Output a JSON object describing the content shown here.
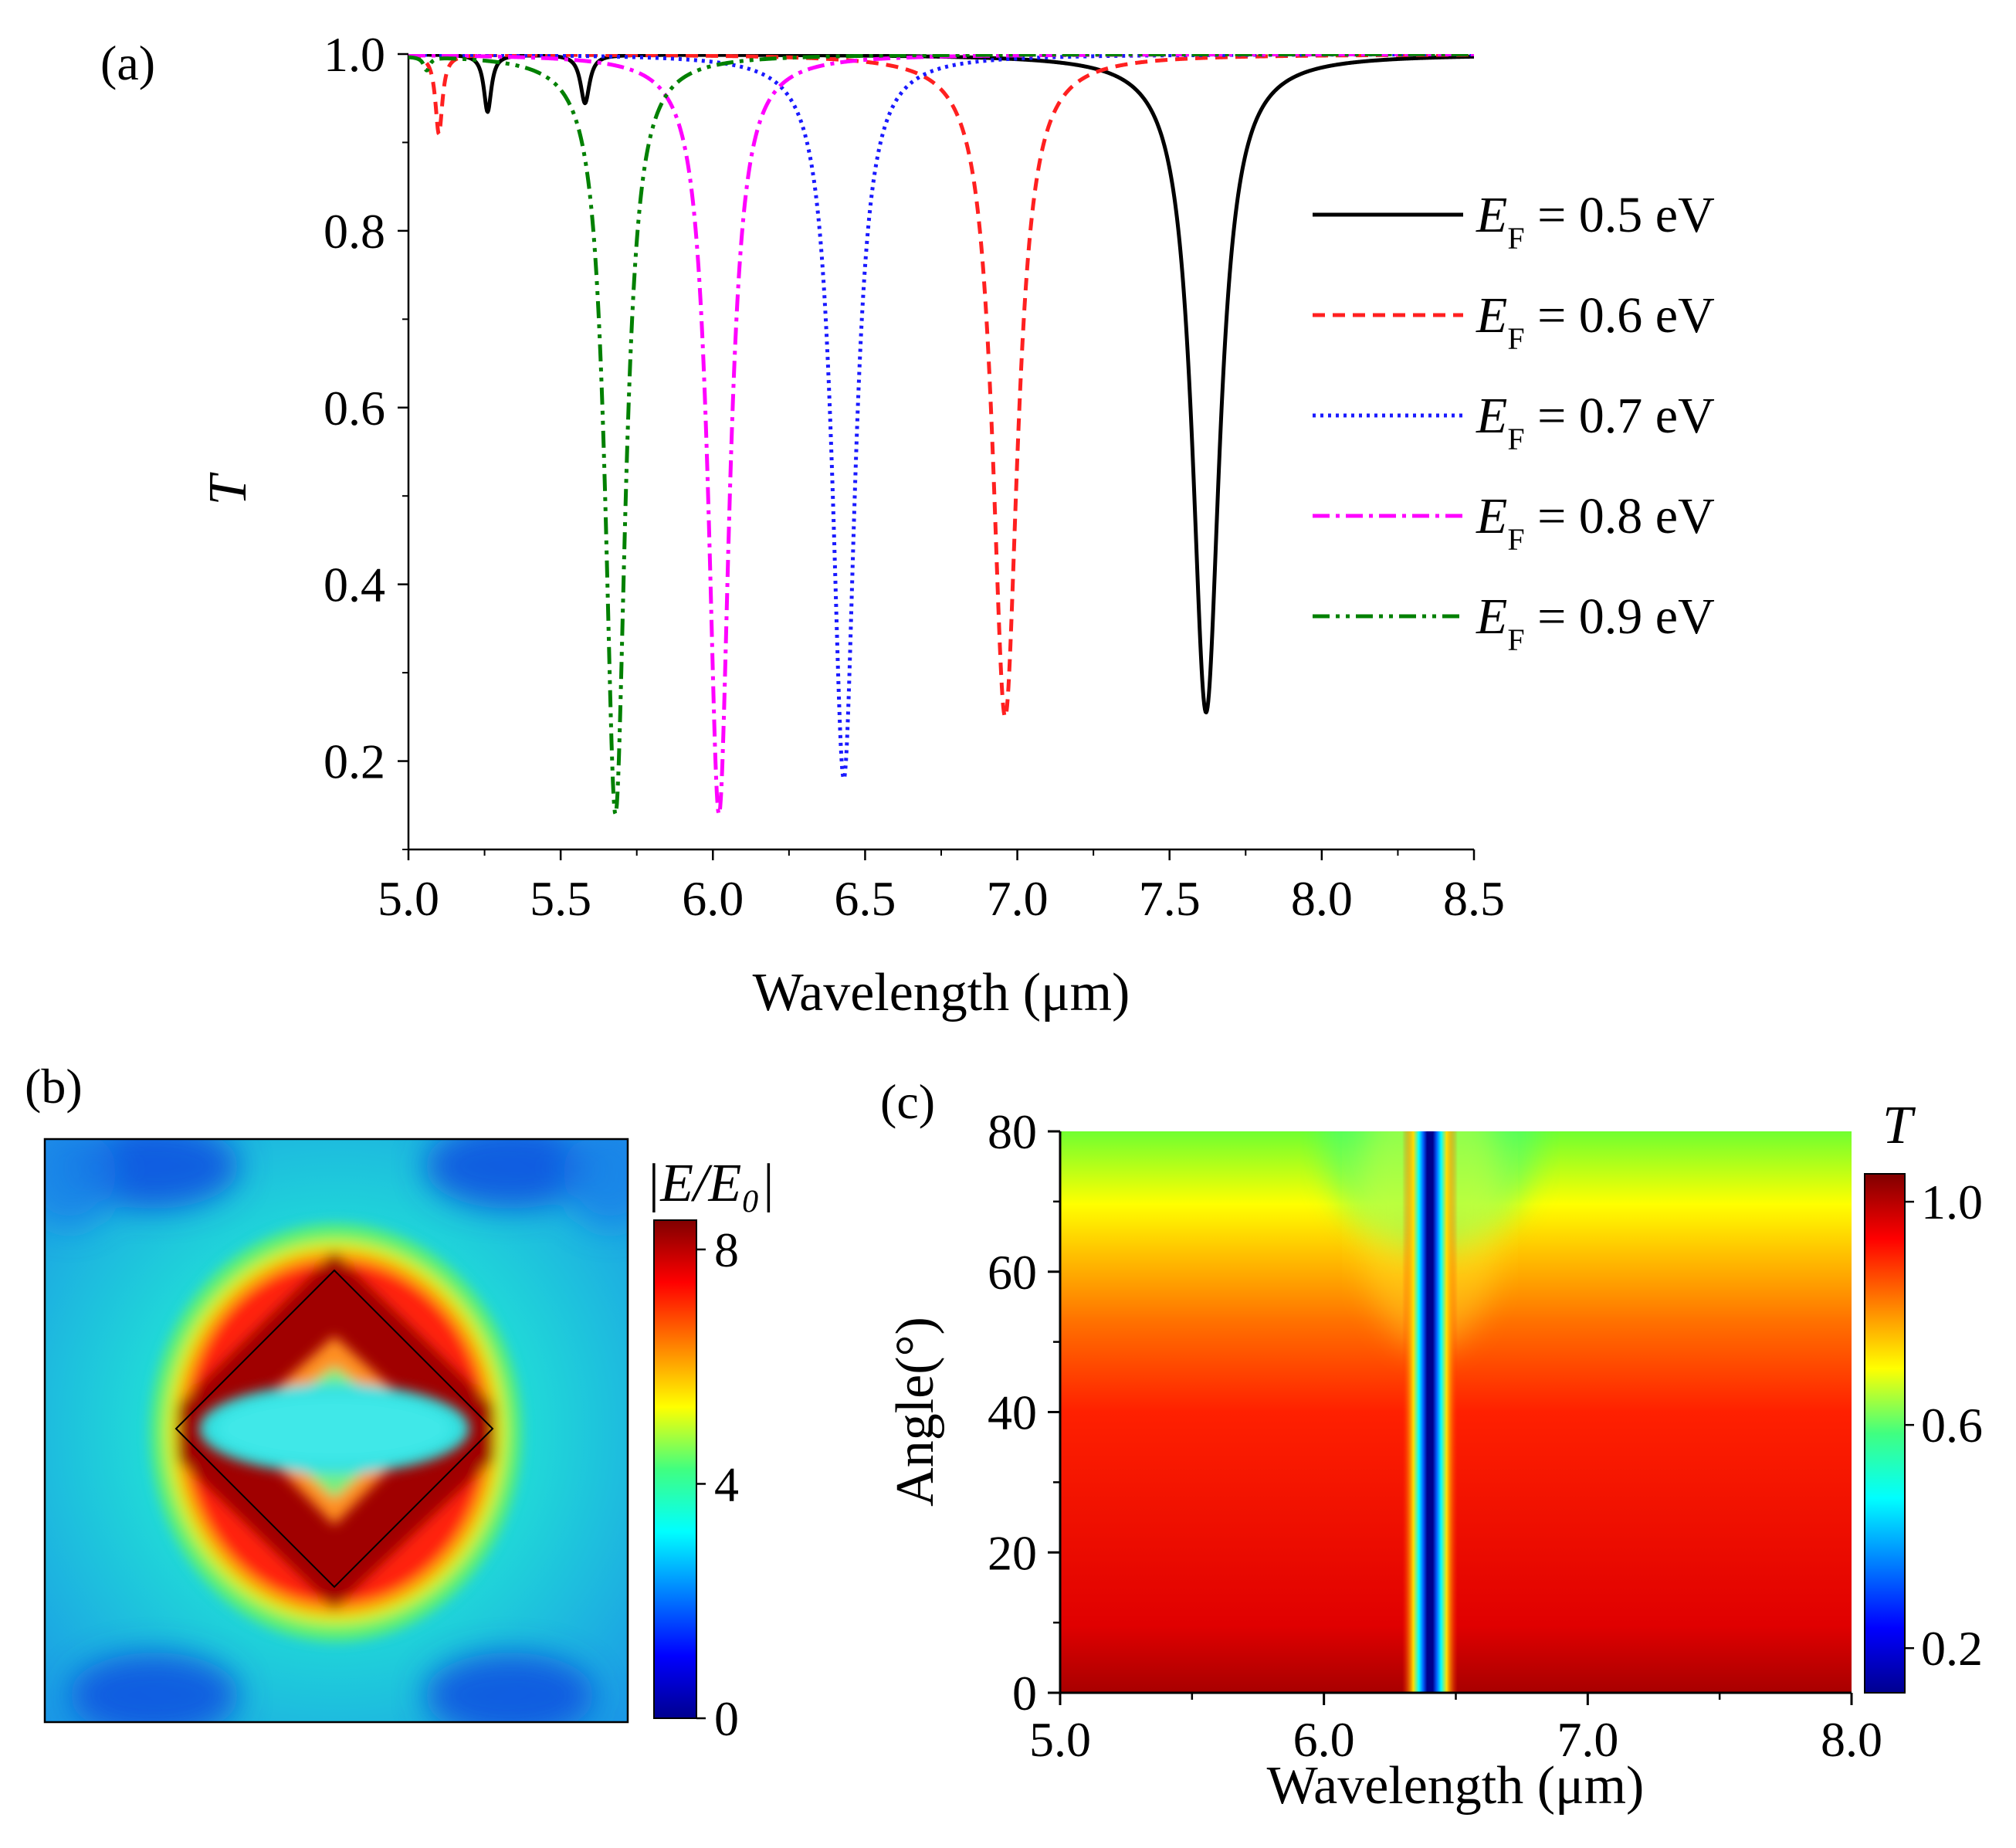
{
  "panels": {
    "a": {
      "label": "(a)"
    },
    "b": {
      "label": "(b)",
      "colorbar_label": "|E/E₀|",
      "colorbar_ticks": [
        "8",
        "4",
        "0"
      ],
      "colorbar_range": [
        0,
        8.5
      ]
    },
    "c": {
      "label": "(c)",
      "colorbar_label": "T",
      "colorbar_ticks": [
        "1.0",
        "0.6",
        "0.2"
      ],
      "colorbar_range": [
        0.12,
        1.05
      ]
    }
  },
  "colors": {
    "ef05": "#000000",
    "ef06": "#ff2020",
    "ef07": "#1a1aff",
    "ef08": "#ff00ff",
    "ef09": "#008000",
    "frame": "#000000"
  },
  "chart_data": [
    {
      "id": "a",
      "type": "line",
      "title": "",
      "xlabel": "Wavelength (μm)",
      "ylabel": "T",
      "xlim": [
        5.0,
        8.5
      ],
      "ylim": [
        0.1,
        1.0
      ],
      "xticks": [
        "5.0",
        "5.5",
        "6.0",
        "6.5",
        "7.0",
        "7.5",
        "8.0",
        "8.5"
      ],
      "yticks": [
        "0.2",
        "0.4",
        "0.6",
        "0.8",
        "1.0"
      ],
      "legend_position": "right",
      "series": [
        {
          "name": "E_F = 0.5 eV",
          "legend_var": "E",
          "legend_sub": "F",
          "legend_text": " = 0.5 eV",
          "style": "solid",
          "color_key": "ef05",
          "dips": [
            {
              "center": 7.62,
              "min": 0.255,
              "width": 0.055
            },
            {
              "center": 5.58,
              "min": 0.945,
              "width": 0.018
            },
            {
              "center": 5.26,
              "min": 0.935,
              "width": 0.015
            }
          ]
        },
        {
          "name": "E_F = 0.6 eV",
          "legend_var": "E",
          "legend_sub": "F",
          "legend_text": " = 0.6 eV",
          "style": "dashed",
          "color_key": "ef06",
          "dips": [
            {
              "center": 6.96,
              "min": 0.25,
              "width": 0.05
            },
            {
              "center": 5.1,
              "min": 0.91,
              "width": 0.014
            }
          ]
        },
        {
          "name": "E_F = 0.7 eV",
          "legend_var": "E",
          "legend_sub": "F",
          "legend_text": " = 0.7 eV",
          "style": "dotted",
          "color_key": "ef07",
          "dips": [
            {
              "center": 6.43,
              "min": 0.18,
              "width": 0.045
            }
          ]
        },
        {
          "name": "E_F = 0.8 eV",
          "legend_var": "E",
          "legend_sub": "F",
          "legend_text": " = 0.8 eV",
          "style": "dash-dot",
          "color_key": "ef08",
          "dips": [
            {
              "center": 6.02,
              "min": 0.14,
              "width": 0.042
            }
          ]
        },
        {
          "name": "E_F = 0.9 eV",
          "legend_var": "E",
          "legend_sub": "F",
          "legend_text": " = 0.9 eV",
          "style": "dash-dot-dot",
          "color_key": "ef09",
          "dips": [
            {
              "center": 5.68,
              "min": 0.14,
              "width": 0.04
            },
            {
              "center": 5.06,
              "min": 0.985,
              "width": 0.012
            }
          ]
        }
      ]
    },
    {
      "id": "b",
      "type": "heatmap",
      "title": "",
      "description_colorbar": "|E/E0|",
      "value_range": [
        0,
        8.5
      ],
      "shape": "square outline rotated 45 degrees, field enhancement strongest (~8) at its edges, ~3 inside, ~2-3 background"
    },
    {
      "id": "c",
      "type": "heatmap",
      "title": "",
      "xlabel": "Wavelength (μm)",
      "ylabel": "Angle(°)",
      "xlim": [
        5.0,
        8.0
      ],
      "ylim": [
        0,
        80
      ],
      "xticks": [
        "5.0",
        "6.0",
        "7.0",
        "8.0"
      ],
      "yticks": [
        "0",
        "20",
        "40",
        "60",
        "80"
      ],
      "colorbar_label": "T",
      "value_range": [
        0.12,
        1.05
      ],
      "resonance_wavelength": 6.4,
      "background_T_at_0deg": 1.0,
      "background_T_at_80deg": 0.62,
      "min_T": 0.15
    }
  ]
}
